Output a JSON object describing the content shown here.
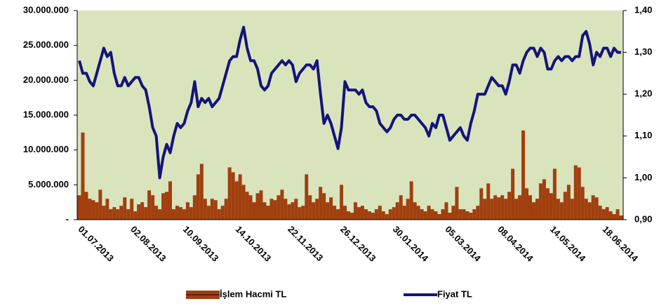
{
  "chart_data": {
    "type": "bar",
    "categories": [
      "01.07.2013",
      null,
      null,
      null,
      null,
      null,
      null,
      null,
      null,
      null,
      null,
      null,
      null,
      null,
      null,
      "02.08.2013",
      null,
      null,
      null,
      null,
      null,
      null,
      null,
      null,
      null,
      null,
      null,
      null,
      null,
      null,
      "10.09.2013",
      null,
      null,
      null,
      null,
      null,
      null,
      null,
      null,
      null,
      null,
      null,
      null,
      null,
      null,
      "14.10.2013",
      null,
      null,
      null,
      null,
      null,
      null,
      null,
      null,
      null,
      null,
      null,
      null,
      null,
      null,
      "22.11.2013",
      null,
      null,
      null,
      null,
      null,
      null,
      null,
      null,
      null,
      null,
      null,
      null,
      null,
      null,
      "26.12.2013",
      null,
      null,
      null,
      null,
      null,
      null,
      null,
      null,
      null,
      null,
      null,
      null,
      null,
      null,
      "30.01.2014",
      null,
      null,
      null,
      null,
      null,
      null,
      null,
      null,
      null,
      null,
      null,
      null,
      null,
      null,
      "05.03.2014",
      null,
      null,
      null,
      null,
      null,
      null,
      null,
      null,
      null,
      null,
      null,
      null,
      null,
      null,
      "08.04.2014",
      null,
      null,
      null,
      null,
      null,
      null,
      null,
      null,
      null,
      null,
      null,
      null,
      null,
      null,
      "14.05.2014",
      null,
      null,
      null,
      null,
      null,
      null,
      null,
      null,
      null,
      null,
      null,
      null,
      null,
      null,
      "18.06.2014",
      null,
      null,
      null,
      null,
      null
    ],
    "series": [
      {
        "name": "İşlem Hacmi TL",
        "type": "bar",
        "axis": "y",
        "color": "#a13f0f",
        "values": [
          3500000,
          12500000,
          4000000,
          3000000,
          2800000,
          2500000,
          4300000,
          2000000,
          3000000,
          1500000,
          1800000,
          1500000,
          2000000,
          3200000,
          1500000,
          3000000,
          1200000,
          2200000,
          2500000,
          1800000,
          4200000,
          3500000,
          2000000,
          1500000,
          3800000,
          4000000,
          5500000,
          1500000,
          2000000,
          1800000,
          1500000,
          2500000,
          1800000,
          3500000,
          6500000,
          8000000,
          3000000,
          2000000,
          3000000,
          2800000,
          1500000,
          2000000,
          3000000,
          7500000,
          6800000,
          5500000,
          6500000,
          5000000,
          4000000,
          3500000,
          2500000,
          3800000,
          4200000,
          2500000,
          2000000,
          3000000,
          2800000,
          3500000,
          4300000,
          3000000,
          2200000,
          2500000,
          3000000,
          1800000,
          2000000,
          6500000,
          3500000,
          2500000,
          3000000,
          4700000,
          3800000,
          2500000,
          3200000,
          2000000,
          1500000,
          5000000,
          2000000,
          1200000,
          1000000,
          2500000,
          1800000,
          2000000,
          1500000,
          1200000,
          1000000,
          1500000,
          2000000,
          1200000,
          800000,
          1500000,
          1800000,
          2500000,
          3500000,
          2000000,
          3000000,
          5500000,
          2500000,
          2000000,
          1500000,
          1200000,
          2000000,
          1500000,
          1200000,
          800000,
          1500000,
          2500000,
          1000000,
          2000000,
          4700000,
          1500000,
          1500000,
          1200000,
          1000000,
          1500000,
          2000000,
          4500000,
          3000000,
          5200000,
          3000000,
          3500000,
          3200000,
          3500000,
          3000000,
          4000000,
          7300000,
          3000000,
          3500000,
          12800000,
          4500000,
          3500000,
          2500000,
          3000000,
          5200000,
          5800000,
          4500000,
          3800000,
          7300000,
          3000000,
          2500000,
          4000000,
          5000000,
          3000000,
          7800000,
          7500000,
          4700000,
          3000000,
          2500000,
          3500000,
          3200000,
          2000000,
          1500000,
          1800000,
          1200000,
          800000,
          1500000,
          600000
        ]
      },
      {
        "name": "Fiyat TL",
        "type": "line",
        "axis": "y2",
        "color": "#14147a",
        "values": [
          1.28,
          1.25,
          1.25,
          1.23,
          1.22,
          1.25,
          1.28,
          1.31,
          1.29,
          1.3,
          1.25,
          1.22,
          1.22,
          1.24,
          1.22,
          1.23,
          1.24,
          1.24,
          1.22,
          1.21,
          1.17,
          1.12,
          1.1,
          1.0,
          1.05,
          1.08,
          1.06,
          1.1,
          1.13,
          1.12,
          1.13,
          1.16,
          1.18,
          1.23,
          1.17,
          1.19,
          1.18,
          1.19,
          1.17,
          1.18,
          1.19,
          1.22,
          1.25,
          1.28,
          1.29,
          1.29,
          1.33,
          1.36,
          1.31,
          1.28,
          1.28,
          1.26,
          1.22,
          1.21,
          1.22,
          1.25,
          1.26,
          1.27,
          1.28,
          1.27,
          1.28,
          1.27,
          1.23,
          1.25,
          1.26,
          1.27,
          1.27,
          1.26,
          1.28,
          1.2,
          1.13,
          1.15,
          1.13,
          1.1,
          1.07,
          1.12,
          1.23,
          1.21,
          1.21,
          1.21,
          1.2,
          1.21,
          1.18,
          1.17,
          1.17,
          1.16,
          1.13,
          1.12,
          1.11,
          1.12,
          1.14,
          1.15,
          1.15,
          1.14,
          1.14,
          1.15,
          1.15,
          1.14,
          1.13,
          1.12,
          1.1,
          1.13,
          1.12,
          1.15,
          1.15,
          1.12,
          1.09,
          1.1,
          1.11,
          1.12,
          1.1,
          1.09,
          1.13,
          1.16,
          1.2,
          1.2,
          1.2,
          1.22,
          1.24,
          1.23,
          1.22,
          1.22,
          1.2,
          1.23,
          1.27,
          1.27,
          1.25,
          1.28,
          1.3,
          1.31,
          1.31,
          1.29,
          1.31,
          1.3,
          1.26,
          1.26,
          1.28,
          1.29,
          1.28,
          1.29,
          1.29,
          1.28,
          1.29,
          1.29,
          1.34,
          1.35,
          1.32,
          1.27,
          1.3,
          1.29,
          1.31,
          1.31,
          1.29,
          1.31,
          1.3,
          1.3
        ]
      }
    ],
    "ylim": [
      0,
      30000000
    ],
    "yticks": [
      {
        "value": 0,
        "label": "-"
      },
      {
        "value": 5000000,
        "label": "5.000.000"
      },
      {
        "value": 10000000,
        "label": "10.000.000"
      },
      {
        "value": 15000000,
        "label": "15.000.000"
      },
      {
        "value": 20000000,
        "label": "20.000.000"
      },
      {
        "value": 25000000,
        "label": "25.000.000"
      },
      {
        "value": 30000000,
        "label": "30.000.000"
      }
    ],
    "y2lim": [
      0.9,
      1.4
    ],
    "y2ticks": [
      {
        "value": 0.9,
        "label": "0,90"
      },
      {
        "value": 1.0,
        "label": "1,00"
      },
      {
        "value": 1.1,
        "label": "1,10"
      },
      {
        "value": 1.2,
        "label": "1,20"
      },
      {
        "value": 1.3,
        "label": "1,30"
      },
      {
        "value": 1.4,
        "label": "1,40"
      }
    ],
    "plot_background": "#d9e4bd",
    "grid": false,
    "legend": "bottom"
  }
}
